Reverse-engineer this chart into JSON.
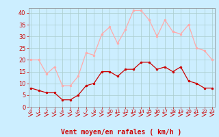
{
  "x": [
    0,
    1,
    2,
    3,
    4,
    5,
    6,
    7,
    8,
    9,
    10,
    11,
    12,
    13,
    14,
    15,
    16,
    17,
    18,
    19,
    20,
    21,
    22,
    23
  ],
  "wind_avg": [
    8,
    7,
    6,
    6,
    3,
    3,
    5,
    9,
    10,
    15,
    15,
    13,
    16,
    16,
    19,
    19,
    16,
    17,
    15,
    17,
    11,
    10,
    8,
    8
  ],
  "wind_gust": [
    20,
    20,
    14,
    17,
    9,
    9,
    13,
    23,
    22,
    31,
    34,
    27,
    33,
    41,
    41,
    37,
    30,
    37,
    32,
    31,
    35,
    25,
    24,
    20
  ],
  "avg_color": "#cc0000",
  "gust_color": "#ffaaaa",
  "bg_color": "#cceeff",
  "grid_color": "#aacccc",
  "xlabel": "Vent moyen/en rafales ( km/h )",
  "xlabel_color": "#cc0000",
  "tick_color": "#cc0000",
  "ylim": [
    0,
    42
  ],
  "yticks": [
    0,
    5,
    10,
    15,
    20,
    25,
    30,
    35,
    40
  ],
  "spine_color": "#888888"
}
